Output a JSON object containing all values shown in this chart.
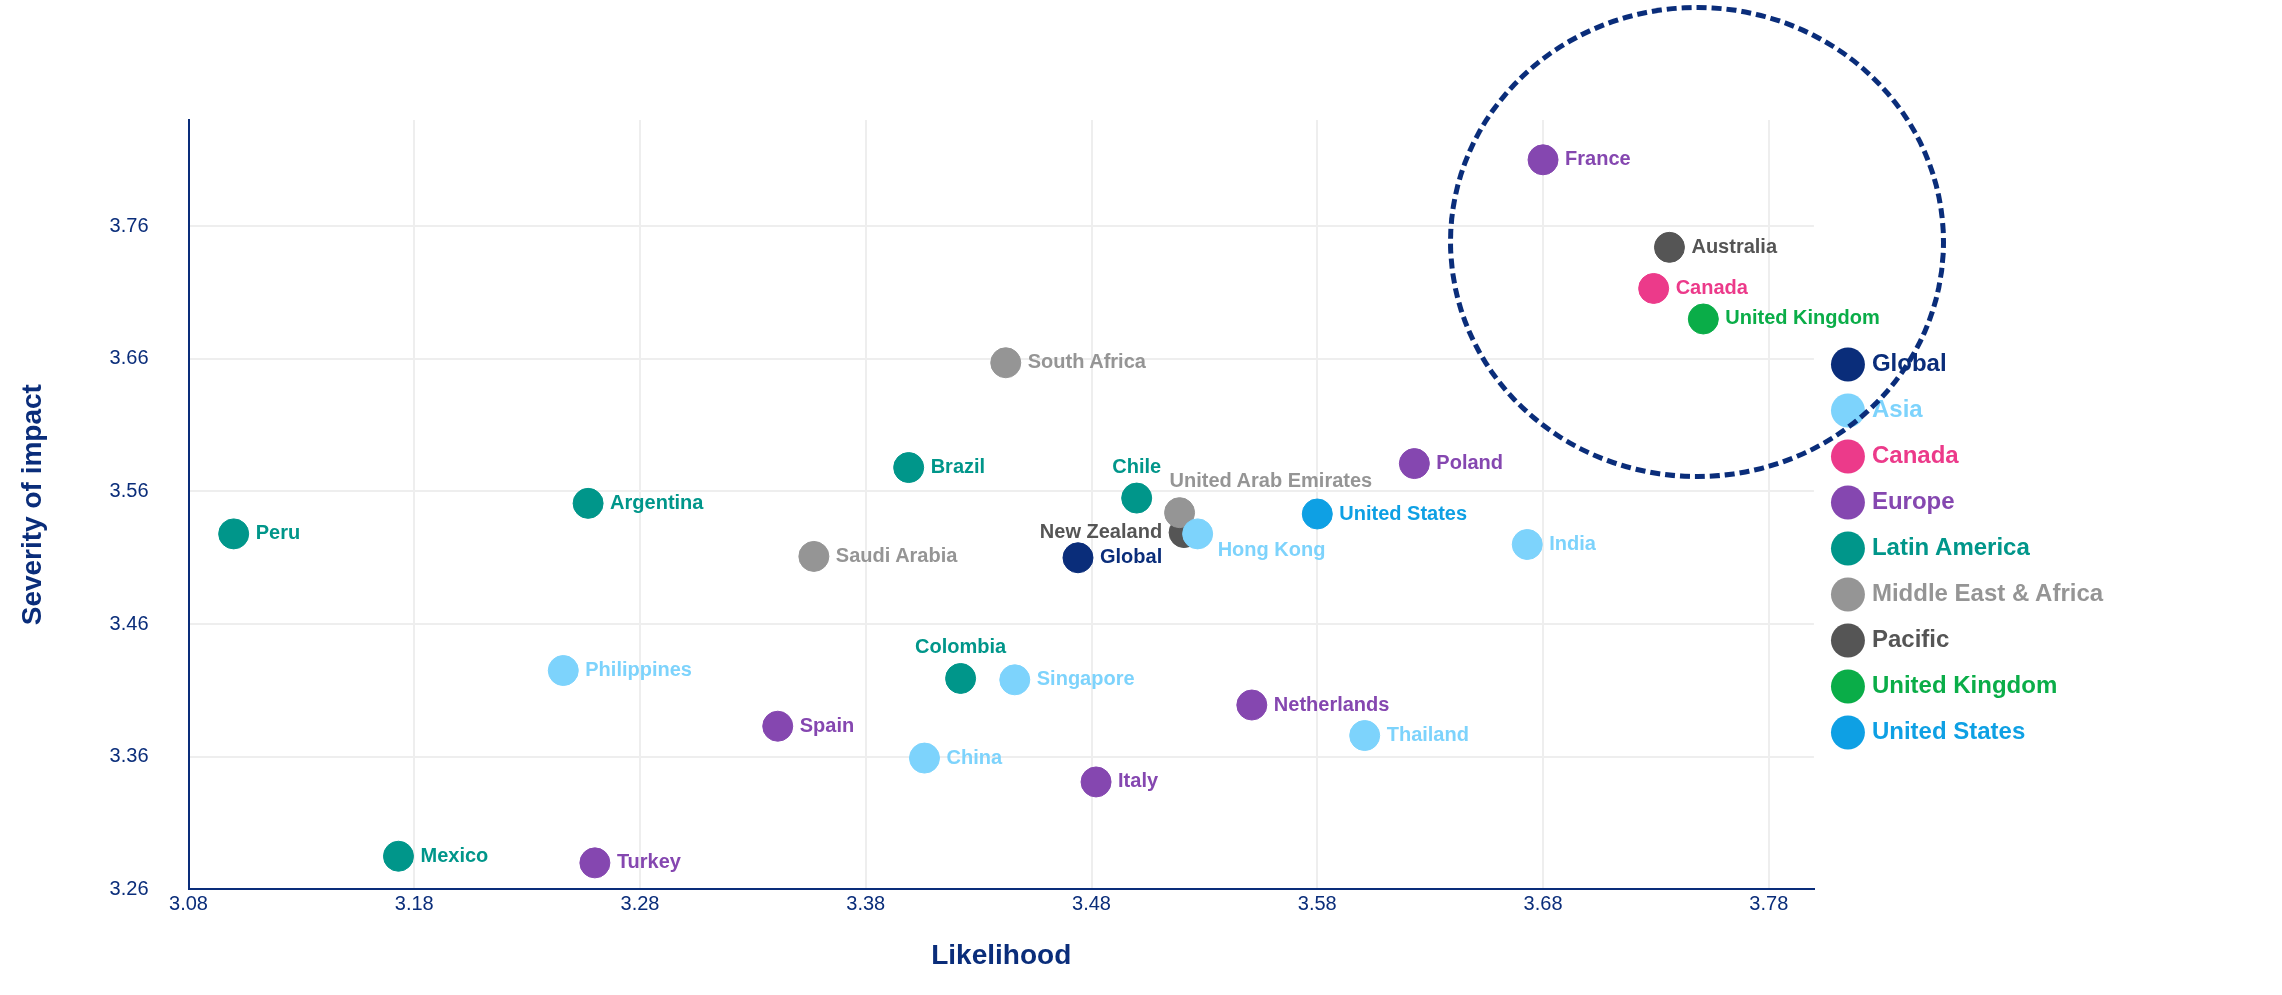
{
  "chart_data": {
    "type": "scatter",
    "xlabel": "Likelihood",
    "ylabel": "Severity of impact",
    "xlim": [
      3.08,
      3.8
    ],
    "ylim": [
      3.26,
      3.84
    ],
    "xticks": [
      3.08,
      3.18,
      3.28,
      3.38,
      3.48,
      3.58,
      3.68,
      3.78
    ],
    "yticks": [
      3.26,
      3.36,
      3.46,
      3.56,
      3.66,
      3.76
    ],
    "grid": true,
    "legend": "right",
    "marker": "circle",
    "series": [
      {
        "name": "Global",
        "color": "#0a2d7a",
        "x": [
          3.474
        ],
        "values": [
          3.51
        ],
        "value_labels": [
          "Global"
        ]
      },
      {
        "name": "Asia",
        "color": "#7dd3fc",
        "x": [
          3.527,
          3.673,
          3.246,
          3.446,
          3.406,
          3.601
        ],
        "values": [
          3.528,
          3.52,
          3.425,
          3.418,
          3.359,
          3.376
        ],
        "value_labels": [
          "Hong Kong",
          "India",
          "Philippines",
          "Singapore",
          "China",
          "Thailand"
        ]
      },
      {
        "name": "Canada",
        "color": "#ec3a8a",
        "x": [
          3.729
        ],
        "values": [
          3.713
        ],
        "value_labels": [
          "Canada"
        ]
      },
      {
        "name": "Europe",
        "color": "#8547b0",
        "x": [
          3.68,
          3.623,
          3.551,
          3.341,
          3.482,
          3.26
        ],
        "values": [
          3.81,
          3.581,
          3.399,
          3.383,
          3.341,
          3.28
        ],
        "value_labels": [
          "France",
          "Poland",
          "Netherlands",
          "Spain",
          "Italy",
          "Turkey"
        ]
      },
      {
        "name": "Latin America",
        "color": "#00968a",
        "x": [
          3.399,
          3.5,
          3.257,
          3.1,
          3.422,
          3.173
        ],
        "values": [
          3.578,
          3.555,
          3.551,
          3.528,
          3.419,
          3.285
        ],
        "value_labels": [
          "Brazil",
          "Chile",
          "Argentina",
          "Peru",
          "Colombia",
          "Mexico"
        ]
      },
      {
        "name": "Middle East & Africa",
        "color": "#959595",
        "x": [
          3.442,
          3.519,
          3.357
        ],
        "values": [
          3.657,
          3.544,
          3.511
        ],
        "value_labels": [
          "South Africa",
          "United Arab Emirates",
          "Saudi Arabia"
        ]
      },
      {
        "name": "Pacific",
        "color": "#555555",
        "x": [
          3.736,
          3.521
        ],
        "values": [
          3.744,
          3.529
        ],
        "value_labels": [
          "Australia",
          "New Zealand"
        ]
      },
      {
        "name": "United Kingdom",
        "color": "#0aad48",
        "x": [
          3.751
        ],
        "values": [
          3.69
        ],
        "value_labels": [
          "United Kingdom"
        ]
      },
      {
        "name": "United States",
        "color": "#0ea0e4",
        "x": [
          3.58
        ],
        "values": [
          3.543
        ],
        "value_labels": [
          "United States"
        ]
      }
    ]
  }
}
